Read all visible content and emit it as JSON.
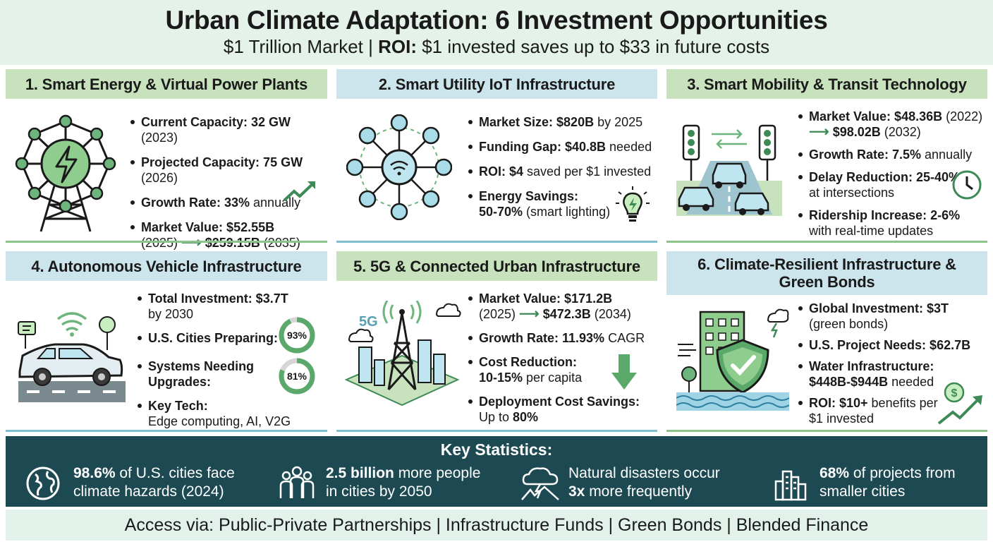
{
  "header": {
    "title": "Urban Climate Adaptation: 6 Investment Opportunities",
    "subtitle_pre": "$1 Trillion Market | ",
    "subtitle_bold": "ROI:",
    "subtitle_post": " $1 invested saves up to $33 in future costs"
  },
  "cards": [
    {
      "title": "1. Smart Energy & Virtual Power Plants",
      "icon": "power-tower-bolt-icon",
      "items": [
        {
          "b": "Current Capacity: 32 GW",
          "t": " (2023)"
        },
        {
          "b": "Projected Capacity: 75 GW",
          "t": " (2026)"
        },
        {
          "b": "Growth Rate: 33%",
          "t": " annually"
        },
        {
          "b": "Market Value: $52.55B",
          "t2": "(2025)",
          "b2": "$259.15B",
          "t3": " (2035)"
        }
      ]
    },
    {
      "title": "2. Smart Utility IoT Infrastructure",
      "icon": "iot-network-hub-icon",
      "items": [
        {
          "b": "Market Size: $820B",
          "t": " by 2025"
        },
        {
          "b": "Funding Gap: $40.8B",
          "t": " needed"
        },
        {
          "b": "ROI: $4",
          "t": " saved per $1 invested"
        },
        {
          "b": "Energy Savings:",
          "b2": "50-70%",
          "t2": " (smart lighting)"
        }
      ]
    },
    {
      "title": "3. Smart Mobility & Transit Technology",
      "icon": "traffic-lights-cars-icon",
      "items": [
        {
          "b": "Market Value: $48.36B",
          "t": " (2022)",
          "b2": "$98.02B",
          "t2": " (2032)"
        },
        {
          "b": "Growth Rate: 7.5%",
          "t": " annually"
        },
        {
          "b": "Delay Reduction: 25-40%",
          "t2": "at intersections"
        },
        {
          "b": "Ridership Increase: 2-6%",
          "t2": "with real-time updates"
        }
      ]
    },
    {
      "title": "4. Autonomous Vehicle Infrastructure",
      "icon": "connected-car-icon",
      "items": [
        {
          "b": "Total Investment: $3.7T",
          "t2": "by 2030"
        },
        {
          "b": "U.S. Cities Preparing:"
        },
        {
          "b": "Systems Needing",
          "b2": "Upgrades:"
        },
        {
          "b": "Key Tech:",
          "t2": "Edge computing, AI, V2G"
        }
      ],
      "donuts": [
        {
          "label": "93%",
          "value": 0.93
        },
        {
          "label": "81%",
          "value": 0.81
        }
      ]
    },
    {
      "title": "5. 5G & Connected Urban Infrastructure",
      "icon": "5g-tower-city-icon",
      "icon_text": "5G",
      "items": [
        {
          "b": "Market Value: $171.2B",
          "t2": "(2025)",
          "b2": "$472.3B",
          "t3": " (2034)"
        },
        {
          "b": "Growth Rate: 11.93%",
          "t": " CAGR"
        },
        {
          "b": "Cost Reduction:",
          "b2": "10-15%",
          "t2": " per capita"
        },
        {
          "b": "Deployment Cost Savings:",
          "t2": "Up to ",
          "b2": "80%"
        }
      ]
    },
    {
      "title": "6. Climate-Resilient Infrastructure & Green Bonds",
      "icon": "resilient-building-shield-icon",
      "items": [
        {
          "b": "Global Investment: $3T",
          "t2": "(green bonds)"
        },
        {
          "b": "U.S. Project Needs: $62.7B"
        },
        {
          "b": "Water Infrastructure:",
          "b2": "$448B-$944B",
          "t2": " needed"
        },
        {
          "b": "ROI: $10+",
          "t": " benefits per",
          "t2": "$1 invested"
        }
      ]
    }
  ],
  "stats": {
    "title": "Key Statistics:",
    "items": [
      {
        "icon": "globe-icon",
        "b": "98.6%",
        "t": " of U.S. cities face",
        "l2": "climate hazards (2024)"
      },
      {
        "icon": "people-group-icon",
        "b": "2.5 billion",
        "t": " more people",
        "l2": "in cities by 2050"
      },
      {
        "icon": "storm-cloud-icon",
        "t": "Natural disasters occur",
        "b2": "3x",
        "l2": " more frequently"
      },
      {
        "icon": "city-buildings-icon",
        "b": "68%",
        "t": " of projects from",
        "l2": "smaller cities"
      }
    ]
  },
  "footer": "Access via: Public-Private Partnerships | Infrastructure Funds | Green Bonds | Blended Finance",
  "colors": {
    "green_dark": "#3d8a57",
    "green_mid": "#6db57c",
    "green_light": "#c8e2bd",
    "blue_light": "#cce4ec",
    "navy": "#1d4a52"
  }
}
